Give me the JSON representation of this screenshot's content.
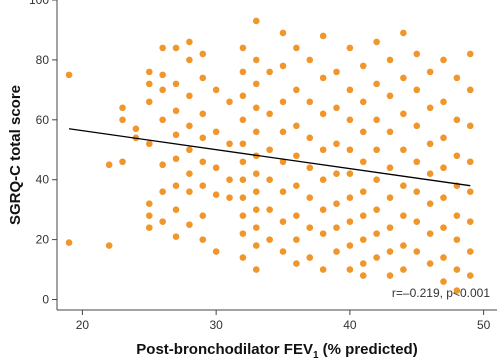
{
  "chart_data": {
    "type": "scatter",
    "y_label": "SGRQ-C total score",
    "x_label": [
      "Post-bronchodilator FEV",
      "1",
      " (% predicted)"
    ],
    "annotation": "r=–0.219, p<0.001",
    "xlim": [
      18.1,
      51
    ],
    "xticks": [
      20,
      30,
      40,
      50
    ],
    "ylim": [
      -3.5,
      100
    ],
    "yticks": [
      0,
      20,
      40,
      60,
      80,
      100
    ],
    "series": [
      {
        "color": "#f0962a",
        "x": [
          19,
          19,
          22,
          22,
          23,
          23,
          23,
          24,
          24,
          25,
          25,
          25,
          25,
          25,
          25,
          25,
          26,
          26,
          26,
          26,
          26,
          26,
          26,
          27,
          27,
          27,
          27,
          27,
          27,
          27,
          27,
          28,
          28,
          28,
          28,
          28,
          28,
          28,
          28,
          29,
          29,
          29,
          29,
          29,
          29,
          29,
          29,
          30,
          30,
          30,
          30,
          30,
          31,
          31,
          31,
          31,
          32,
          32,
          32,
          32,
          32,
          32,
          32,
          32,
          32,
          32,
          32,
          33,
          33,
          33,
          33,
          33,
          33,
          33,
          33,
          33,
          33,
          33,
          33,
          34,
          34,
          34,
          34,
          34,
          34,
          35,
          35,
          35,
          35,
          35,
          35,
          35,
          35,
          36,
          36,
          36,
          36,
          36,
          36,
          36,
          36,
          37,
          37,
          37,
          37,
          37,
          37,
          37,
          38,
          38,
          38,
          38,
          38,
          38,
          38,
          38,
          39,
          39,
          39,
          39,
          39,
          39,
          39,
          40,
          40,
          40,
          40,
          40,
          40,
          40,
          40,
          40,
          41,
          41,
          41,
          41,
          41,
          41,
          41,
          41,
          41,
          42,
          42,
          42,
          42,
          42,
          42,
          42,
          42,
          43,
          43,
          43,
          43,
          43,
          43,
          43,
          43,
          44,
          44,
          44,
          44,
          44,
          44,
          44,
          44,
          45,
          45,
          45,
          45,
          45,
          45,
          45,
          46,
          46,
          46,
          46,
          46,
          46,
          46,
          47,
          47,
          47,
          47,
          47,
          47,
          47,
          47,
          48,
          48,
          48,
          48,
          48,
          48,
          48,
          48,
          49,
          49,
          49,
          49,
          49,
          49,
          49,
          49
        ],
        "values": [
          75,
          19,
          45,
          18,
          64,
          60,
          46,
          57,
          54,
          76,
          72,
          66,
          52,
          32,
          28,
          24,
          84,
          75,
          70,
          60,
          45,
          36,
          26,
          84,
          72,
          63,
          55,
          47,
          38,
          30,
          21,
          86,
          80,
          68,
          58,
          50,
          42,
          36,
          25,
          82,
          74,
          62,
          54,
          46,
          38,
          28,
          20,
          70,
          56,
          44,
          35,
          16,
          66,
          52,
          40,
          34,
          84,
          76,
          68,
          60,
          52,
          46,
          40,
          34,
          28,
          22,
          14,
          93,
          80,
          72,
          64,
          56,
          48,
          42,
          36,
          30,
          24,
          18,
          10,
          76,
          62,
          50,
          40,
          30,
          20,
          89,
          78,
          66,
          56,
          46,
          36,
          26,
          16,
          84,
          70,
          58,
          48,
          38,
          28,
          20,
          12,
          80,
          66,
          54,
          44,
          34,
          24,
          14,
          88,
          74,
          62,
          50,
          40,
          30,
          22,
          10,
          76,
          64,
          52,
          42,
          32,
          24,
          16,
          84,
          70,
          60,
          50,
          42,
          34,
          26,
          18,
          10,
          78,
          66,
          56,
          46,
          36,
          28,
          20,
          12,
          8,
          86,
          72,
          60,
          50,
          40,
          30,
          22,
          14,
          80,
          68,
          56,
          44,
          34,
          24,
          16,
          8,
          89,
          74,
          62,
          50,
          38,
          28,
          18,
          10,
          82,
          70,
          58,
          46,
          36,
          26,
          16,
          76,
          64,
          52,
          42,
          32,
          22,
          12,
          80,
          66,
          54,
          44,
          34,
          24,
          14,
          6,
          74,
          60,
          48,
          38,
          28,
          20,
          10,
          3,
          82,
          70,
          58,
          46,
          36,
          26,
          16,
          8
        ]
      }
    ],
    "trendline": {
      "color": "#000000",
      "x": [
        19,
        49
      ],
      "values": [
        57,
        38
      ]
    }
  }
}
